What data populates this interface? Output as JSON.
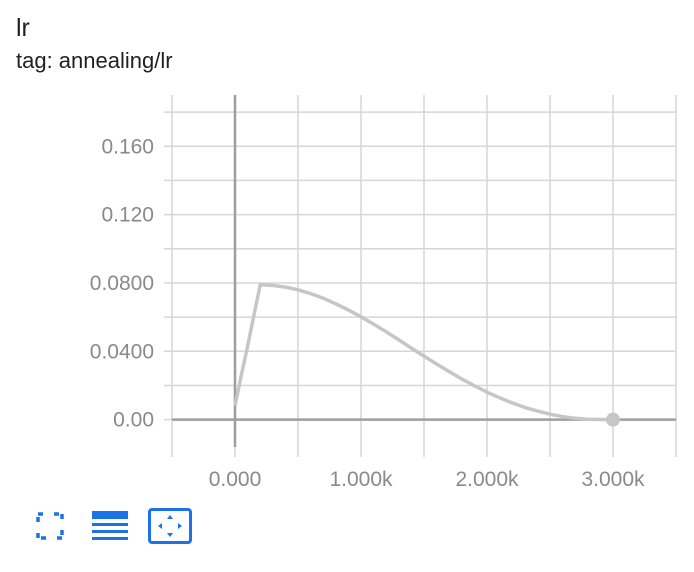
{
  "header": {
    "title": "lr",
    "tag": "tag: annealing/lr"
  },
  "colors": {
    "series": "#c6c6c6",
    "grid": "#d6d6d6",
    "axis": "#9e9e9e",
    "accent": "#1a73e8"
  },
  "toolbar": [
    {
      "name": "expand-button",
      "icon": "fullscreen-icon"
    },
    {
      "name": "toggle-y-log-button",
      "icon": "lines-icon"
    },
    {
      "name": "fit-domain-button",
      "icon": "fit-to-data-icon"
    }
  ],
  "chart_data": {
    "type": "line",
    "title": "",
    "xlabel": "",
    "ylabel": "",
    "xlim": [
      -500,
      3500
    ],
    "ylim": [
      -0.016,
      0.19
    ],
    "x_ticks": [
      0,
      1000,
      2000,
      3000
    ],
    "x_tick_labels": [
      "0.000",
      "1.000k",
      "2.000k",
      "3.000k"
    ],
    "y_ticks": [
      0,
      0.04,
      0.08,
      0.12,
      0.16
    ],
    "y_tick_labels": [
      "0.00",
      "0.0400",
      "0.0800",
      "0.120",
      "0.160"
    ],
    "grid": true,
    "series": [
      {
        "x": [
          0,
          50,
          100,
          150,
          200,
          300,
          400,
          500,
          600,
          700,
          800,
          900,
          1000,
          1100,
          1200,
          1300,
          1400,
          1500,
          1600,
          1700,
          1800,
          1900,
          2000,
          2100,
          2200,
          2300,
          2400,
          2500,
          2600,
          2700,
          2800,
          2900,
          3000
        ],
        "y": [
          0.008,
          0.026,
          0.043,
          0.061,
          0.079,
          0.0786,
          0.0776,
          0.076,
          0.0738,
          0.0711,
          0.0678,
          0.0642,
          0.0602,
          0.0559,
          0.0514,
          0.0467,
          0.0419,
          0.0372,
          0.0326,
          0.0281,
          0.0238,
          0.0198,
          0.0161,
          0.0128,
          0.0098,
          0.0072,
          0.005,
          0.0032,
          0.0018,
          0.0008,
          0.0002,
          0.0001,
          0.0
        ]
      }
    ]
  }
}
